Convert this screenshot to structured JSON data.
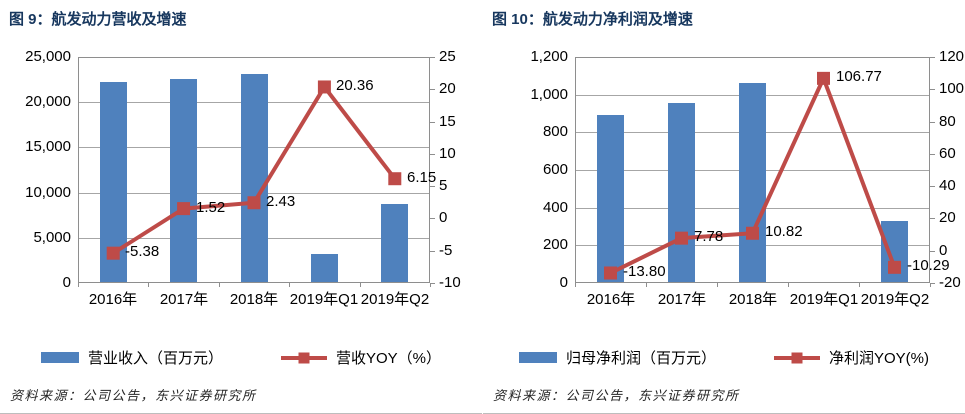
{
  "page": {
    "background": "#ffffff",
    "title_color": "#17375e",
    "bar_color": "#4f81bd",
    "line_color": "#be4b48",
    "gridline_color": "#a6a6a6"
  },
  "chart_data": [
    {
      "type": "combo",
      "title": "图 9：航发动力营收及增速",
      "categories": [
        "2016年",
        "2017年",
        "2018年",
        "2019年Q1",
        "2019年Q2"
      ],
      "series": [
        {
          "name": "营业收入（百万元）",
          "type": "bar",
          "axis": "left",
          "color": "#4f81bd",
          "values": [
            22200,
            22550,
            23100,
            3250,
            8700
          ]
        },
        {
          "name": "营收YOY（%）",
          "type": "line",
          "axis": "right",
          "color": "#be4b48",
          "values": [
            -5.38,
            1.52,
            2.43,
            20.36,
            6.15
          ],
          "labels": [
            "-5.38",
            "1.52",
            "2.43",
            "20.36",
            "6.15"
          ]
        }
      ],
      "left_axis": {
        "min": 0,
        "max": 25000,
        "step": 5000,
        "tick_labels": [
          "25,000",
          "20,000",
          "15,000",
          "10,000",
          "5,000",
          "0"
        ]
      },
      "right_axis": {
        "min": -10,
        "max": 25,
        "step": 5,
        "tick_labels": [
          "25",
          "20",
          "15",
          "10",
          "5",
          "0",
          "-5",
          "-10"
        ]
      },
      "grid": "horizontal",
      "legend_position": "bottom",
      "source": "资料来源：公司公告，东兴证券研究所"
    },
    {
      "type": "combo",
      "title": "图 10：航发动力净利润及增速",
      "categories": [
        "2016年",
        "2017年",
        "2018年",
        "2019年Q1",
        "2019年Q2"
      ],
      "series": [
        {
          "name": "归母净利润（百万元）",
          "type": "bar",
          "axis": "left",
          "color": "#4f81bd",
          "values": [
            890,
            955,
            1060,
            null,
            330
          ]
        },
        {
          "name": "净利润YOY(%)",
          "type": "line",
          "axis": "right",
          "color": "#be4b48",
          "values": [
            -13.8,
            7.78,
            10.82,
            106.77,
            -10.29
          ],
          "labels": [
            "-13.80",
            "7.78",
            "10.82",
            "106.77",
            "-10.29"
          ]
        }
      ],
      "left_axis": {
        "min": 0,
        "max": 1200,
        "step": 200,
        "tick_labels": [
          "1,200",
          "1,000",
          "800",
          "600",
          "400",
          "200",
          "0"
        ]
      },
      "right_axis": {
        "min": -20,
        "max": 120,
        "step": 20,
        "tick_labels": [
          "120",
          "100",
          "80",
          "60",
          "40",
          "20",
          "0",
          "-20"
        ]
      },
      "grid": "horizontal",
      "legend_position": "bottom",
      "source": "资料来源：公司公告，东兴证券研究所"
    }
  ]
}
